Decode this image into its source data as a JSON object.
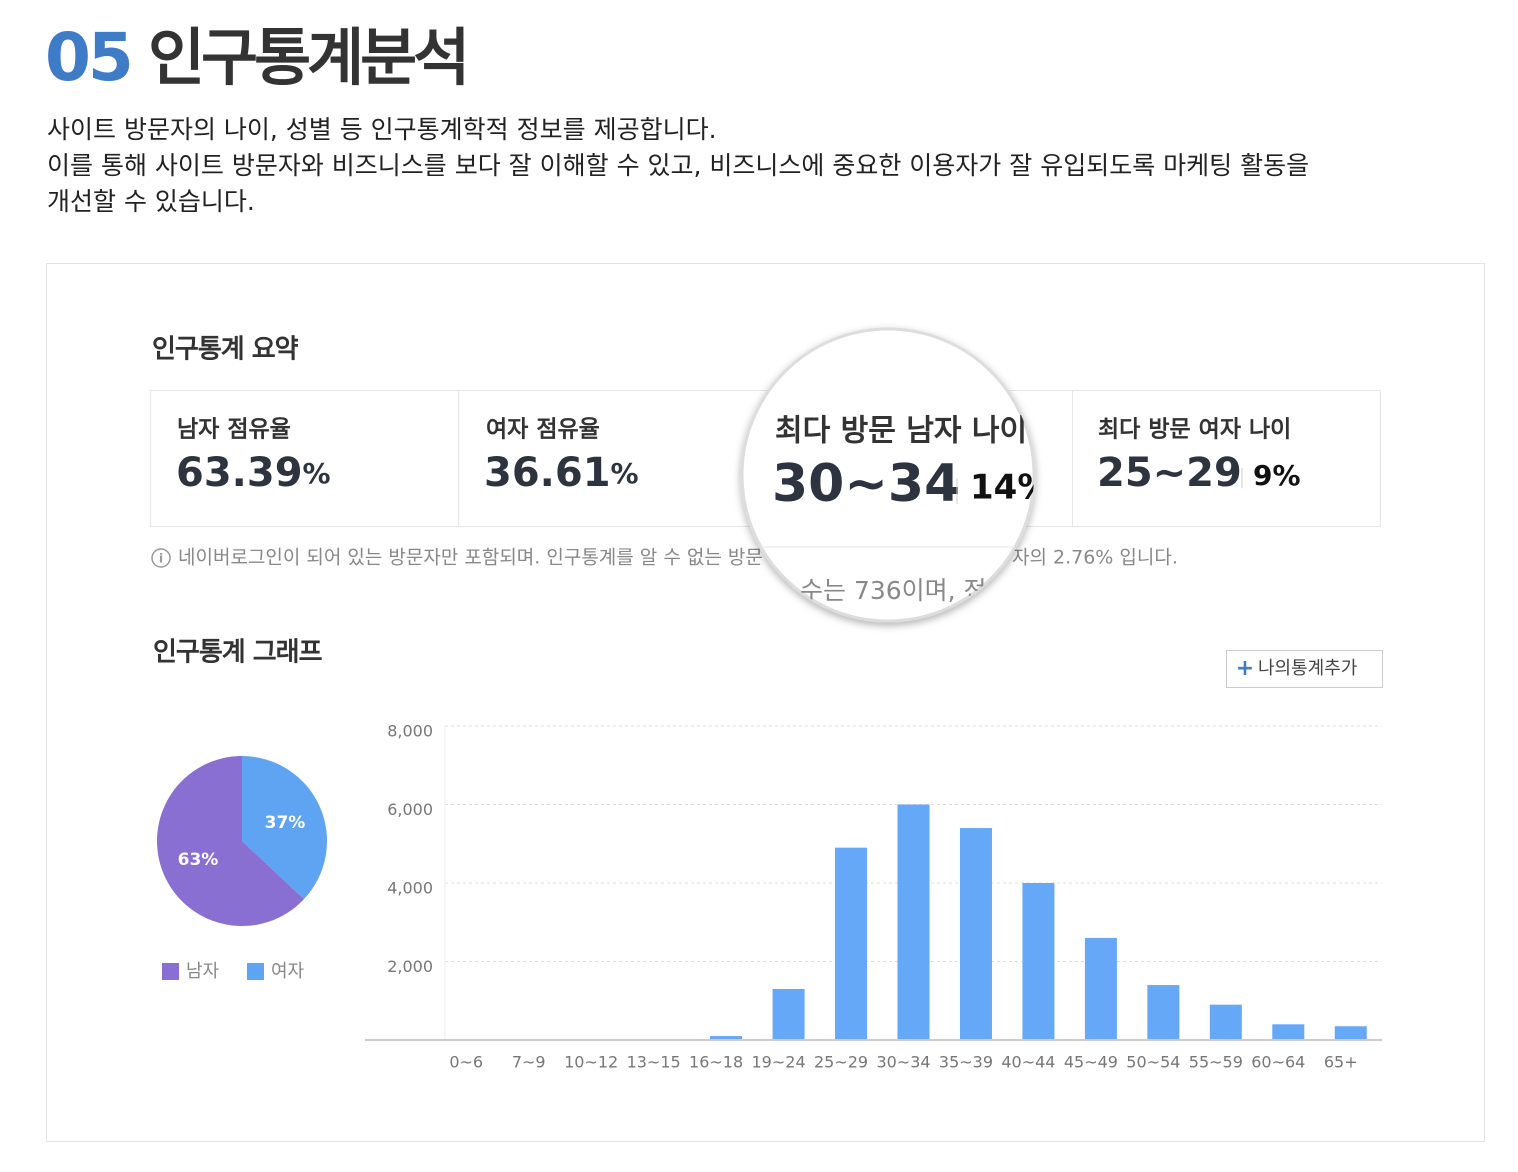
{
  "header": {
    "number": "05",
    "title": "인구통계분석"
  },
  "description": [
    "사이트 방문자의 나이, 성별 등 인구통계학적 정보를 제공합니다.",
    "이를 통해 사이트 방문자와 비즈니스를 보다 잘 이해할 수 있고, 비즈니스에 중요한 이용자가 잘 유입되도록 마케팅 활동을",
    "개선할 수 있습니다."
  ],
  "summary": {
    "heading": "인구통계 요약",
    "cards": [
      {
        "label": "남자 점유율",
        "value": "63.39",
        "unit": "%"
      },
      {
        "label": "여자 점유율",
        "value": "36.61",
        "unit": "%"
      },
      {
        "label": "최다 방문 남자 나이",
        "value": "30~34",
        "share": "14%"
      },
      {
        "label": "최다 방문 여자 나이",
        "value": "25~29",
        "share": "9%"
      }
    ],
    "note": [
      "네이버로그인이 되어 있는 방문자만 포함되며. 인구통계를 알 수 없는 방문",
      "자의 2.76% 입니다."
    ],
    "magnified_note": "수는 736이며, 전"
  },
  "graph": {
    "heading": "인구통계 그래프",
    "button": "나의통계추가"
  },
  "chart_data": [
    {
      "type": "pie",
      "categories": [
        "남자",
        "여자"
      ],
      "values": [
        63,
        37
      ],
      "value_labels": [
        "63%",
        "37%"
      ],
      "colors": [
        "#8a6fd2",
        "#5ea4f2"
      ]
    },
    {
      "type": "bar",
      "categories": [
        "0~6",
        "7~9",
        "10~12",
        "13~15",
        "16~18",
        "19~24",
        "25~29",
        "30~34",
        "35~39",
        "40~44",
        "45~49",
        "50~54",
        "55~59",
        "60~64",
        "65+"
      ],
      "values": [
        0,
        0,
        0,
        0,
        100,
        1300,
        4900,
        6000,
        5400,
        4000,
        2600,
        1400,
        900,
        400,
        350
      ],
      "color": "#64a8f7",
      "ylim": [
        0,
        8000
      ],
      "yticks": [
        {
          "value": 2000,
          "label": "2,000"
        },
        {
          "value": 4000,
          "label": "4,000"
        },
        {
          "value": 6000,
          "label": "6,000"
        },
        {
          "value": 8000,
          "label": "8,000"
        }
      ],
      "grid": true
    }
  ]
}
